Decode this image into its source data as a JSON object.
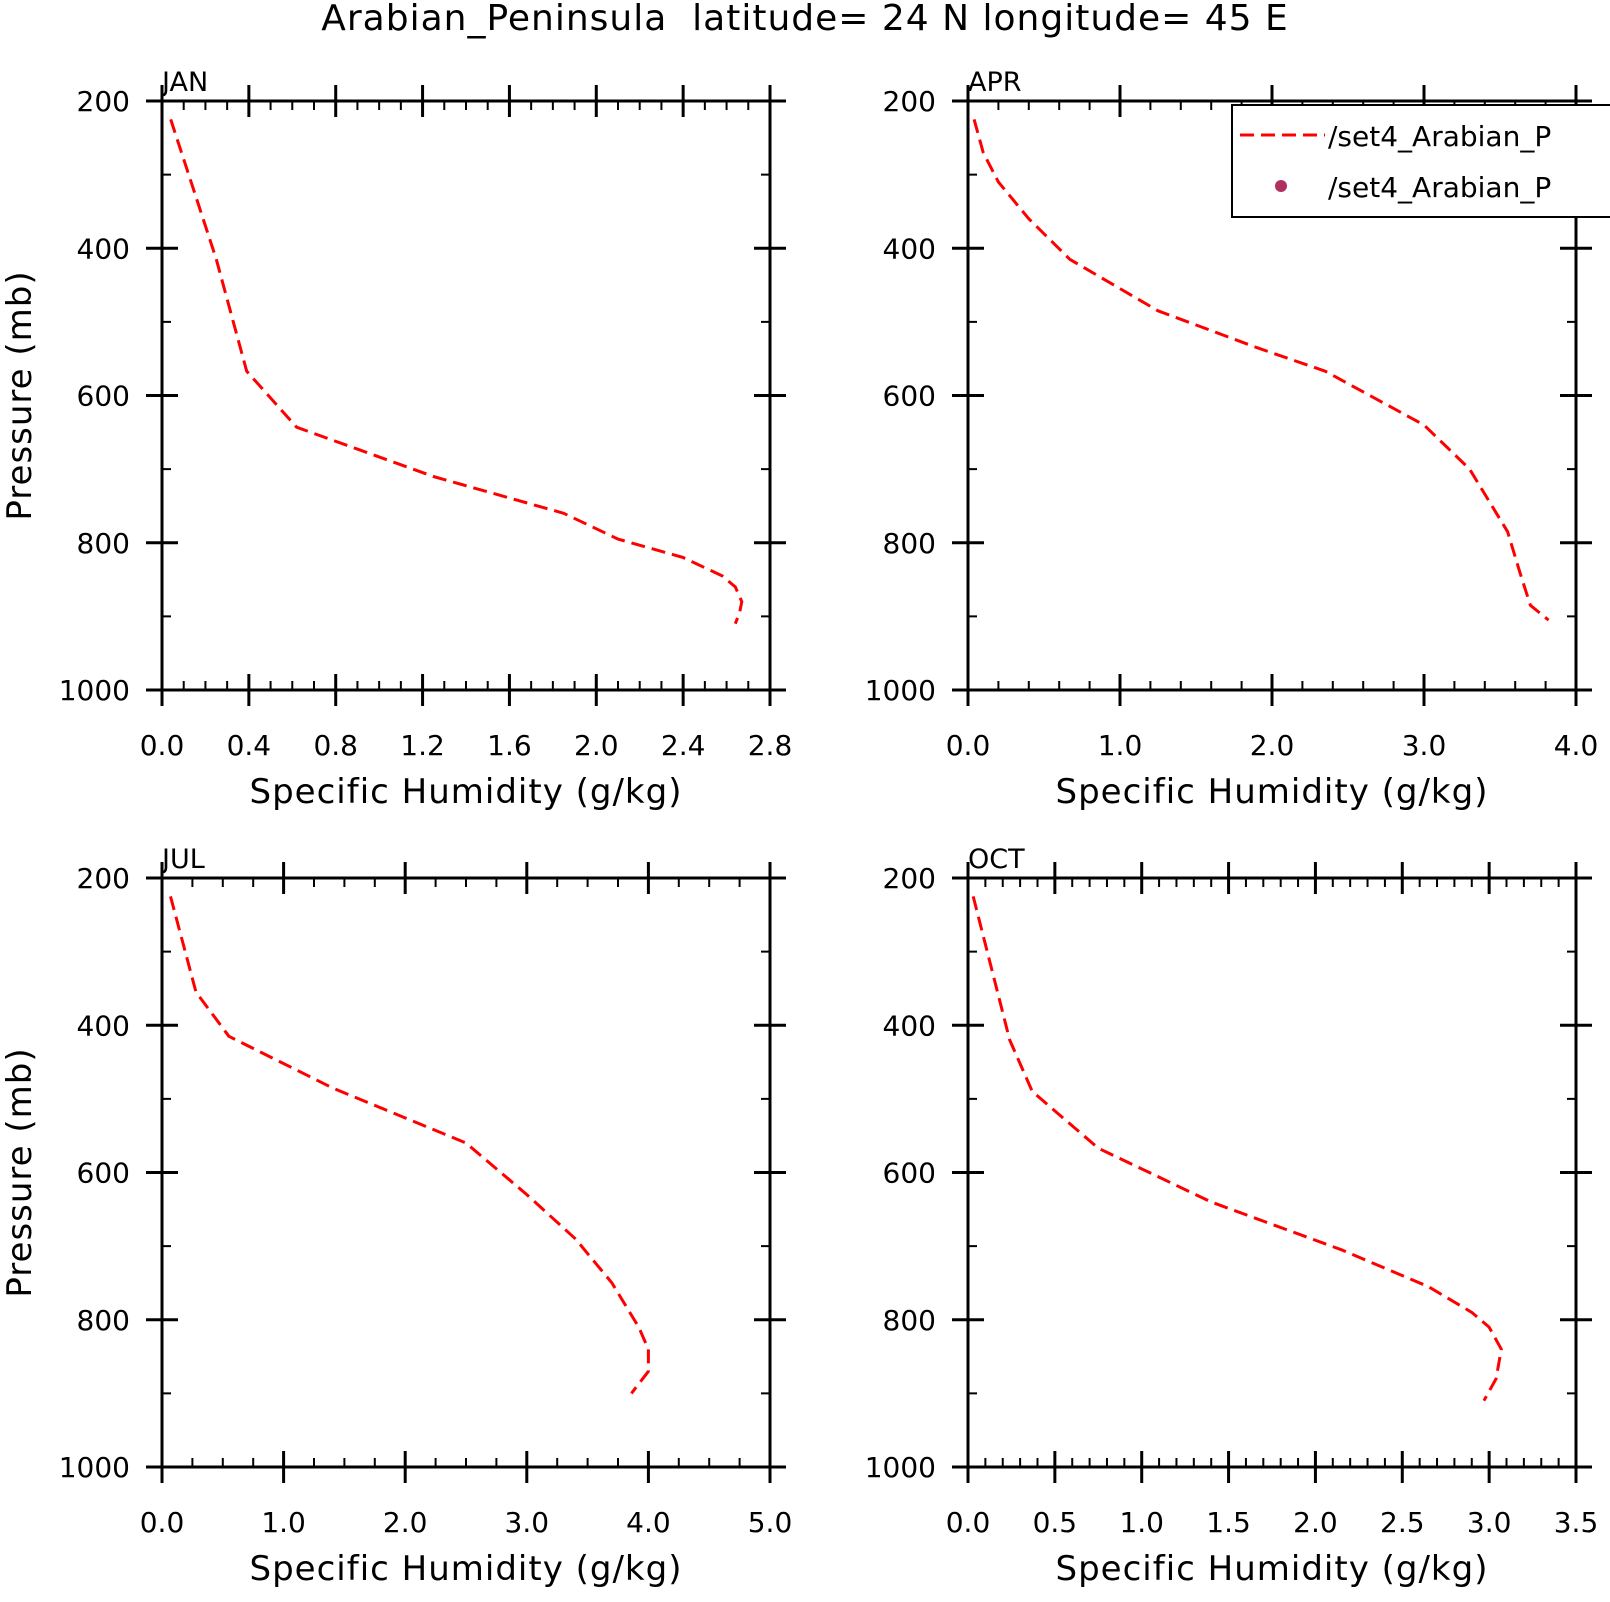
{
  "title": "Arabian_Peninsula  latitude= 24 N longitude= 45 E",
  "legend": {
    "entries": [
      {
        "label": "/set4_Arabian_P",
        "style": "dashed-line",
        "color": "#ff0000"
      },
      {
        "label": "/set4_Arabian_P",
        "style": "dot",
        "color": "#b03060"
      }
    ]
  },
  "chart_data": [
    {
      "type": "line",
      "panel_label": "JAN",
      "xlabel": "Specific Humidity (g/kg)",
      "ylabel": "Pressure (mb)",
      "xlim": [
        0.0,
        2.8
      ],
      "ylim": [
        1000,
        200
      ],
      "y_inverted": true,
      "x_ticks": [
        "0.0",
        "0.4",
        "0.8",
        "1.2",
        "1.6",
        "2.0",
        "2.4",
        "2.8"
      ],
      "y_ticks": [
        "200",
        "400",
        "600",
        "800",
        "1000"
      ],
      "x_minor_step": 0.1,
      "y_minor_step": 100,
      "series": [
        {
          "color": "#ff0000",
          "dash": "dashed",
          "x": [
            0.04,
            0.25,
            0.39,
            0.62,
            1.25,
            1.85,
            2.1,
            2.4,
            2.58,
            2.64,
            2.67,
            2.66,
            2.64
          ],
          "y": [
            225,
            415,
            567,
            643,
            710,
            760,
            795,
            820,
            845,
            860,
            880,
            895,
            910
          ]
        }
      ]
    },
    {
      "type": "line",
      "panel_label": "APR",
      "xlabel": "Specific Humidity (g/kg)",
      "ylabel": "",
      "xlim": [
        0.0,
        4.0
      ],
      "ylim": [
        1000,
        200
      ],
      "y_inverted": true,
      "x_ticks": [
        "0.0",
        "1.0",
        "2.0",
        "3.0",
        "4.0"
      ],
      "y_ticks": [
        "200",
        "400",
        "600",
        "800",
        "1000"
      ],
      "x_minor_step": 0.2,
      "y_minor_step": 100,
      "series": [
        {
          "color": "#ff0000",
          "dash": "dashed",
          "x": [
            0.04,
            0.1,
            0.2,
            0.4,
            0.67,
            1.25,
            1.9,
            2.35,
            3.0,
            3.3,
            3.55,
            3.63,
            3.7,
            3.82
          ],
          "y": [
            225,
            270,
            310,
            360,
            415,
            485,
            535,
            567,
            640,
            700,
            785,
            840,
            885,
            905
          ]
        }
      ]
    },
    {
      "type": "line",
      "panel_label": "JUL",
      "xlabel": "Specific Humidity (g/kg)",
      "ylabel": "Pressure (mb)",
      "xlim": [
        0.0,
        5.0
      ],
      "ylim": [
        1000,
        200
      ],
      "y_inverted": true,
      "x_ticks": [
        "0.0",
        "1.0",
        "2.0",
        "3.0",
        "4.0",
        "5.0"
      ],
      "y_ticks": [
        "200",
        "400",
        "600",
        "800",
        "1000"
      ],
      "x_minor_step": 0.25,
      "y_minor_step": 100,
      "series": [
        {
          "color": "#ff0000",
          "dash": "dashed",
          "x": [
            0.07,
            0.28,
            0.55,
            1.4,
            2.5,
            3.0,
            3.4,
            3.7,
            3.92,
            4.0,
            4.0,
            3.86
          ],
          "y": [
            225,
            355,
            415,
            485,
            560,
            630,
            690,
            750,
            810,
            840,
            870,
            900
          ]
        }
      ]
    },
    {
      "type": "line",
      "panel_label": "OCT",
      "xlabel": "Specific Humidity (g/kg)",
      "ylabel": "",
      "xlim": [
        0.0,
        3.5
      ],
      "ylim": [
        1000,
        200
      ],
      "y_inverted": true,
      "x_ticks": [
        "0.0",
        "0.5",
        "1.0",
        "1.5",
        "2.0",
        "2.5",
        "3.0",
        "3.5"
      ],
      "y_ticks": [
        "200",
        "400",
        "600",
        "800",
        "1000"
      ],
      "x_minor_step": 0.1,
      "y_minor_step": 100,
      "series": [
        {
          "color": "#ff0000",
          "dash": "dashed",
          "x": [
            0.03,
            0.24,
            0.37,
            0.75,
            1.4,
            2.15,
            2.65,
            2.9,
            3.0,
            3.07,
            3.04,
            2.97
          ],
          "y": [
            225,
            420,
            490,
            567,
            640,
            705,
            755,
            790,
            810,
            840,
            880,
            910
          ]
        }
      ]
    }
  ]
}
